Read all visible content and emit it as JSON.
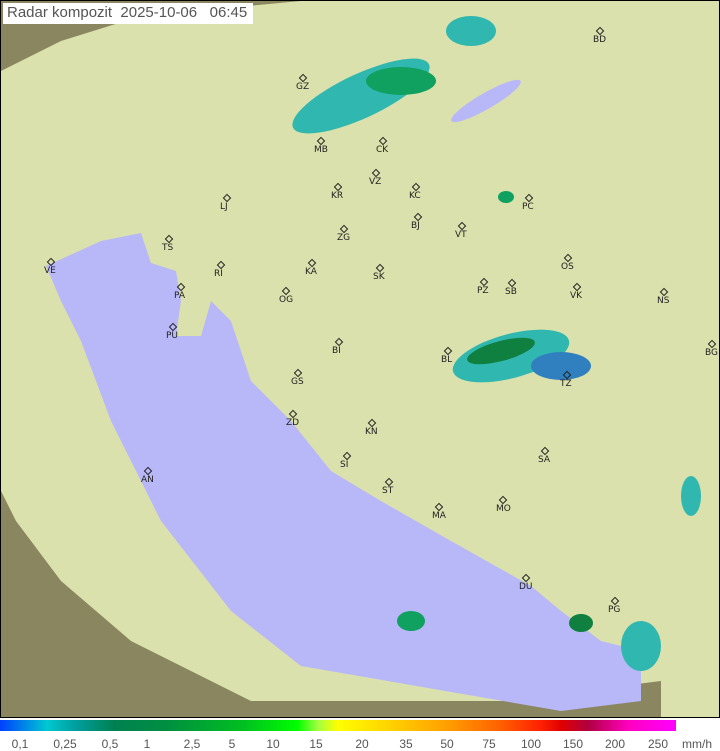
{
  "title": {
    "label": "Radar kompozit",
    "date": "2025-10-06",
    "time": "06:45"
  },
  "colors": {
    "sea": "#b8b8f8",
    "land_coverage": "#dfe8b0",
    "outside": "#7a7a58",
    "radar_light": "#30b8b0",
    "radar_dark": "#108040"
  },
  "cities": [
    "BD",
    "GZ",
    "MB",
    "CK",
    "VZ",
    "KR",
    "KC",
    "LJ",
    "PC",
    "BJ",
    "TS",
    "ZG",
    "VT",
    "RI",
    "VE",
    "KA",
    "SK",
    "OS",
    "PA",
    "OG",
    "PZ",
    "SB",
    "VK",
    "NS",
    "PU",
    "BI",
    "BL",
    "BG",
    "TZ",
    "GS",
    "ZD",
    "KN",
    "SA",
    "SI",
    "AN",
    "ST",
    "MO",
    "MA",
    "DU",
    "PG"
  ],
  "legend": {
    "ticks": [
      "0,1",
      "0,25",
      "0,5",
      "1",
      "2,5",
      "5",
      "10",
      "15",
      "20",
      "35",
      "50",
      "75",
      "100",
      "150",
      "200",
      "250"
    ],
    "unit": "mm/h"
  }
}
